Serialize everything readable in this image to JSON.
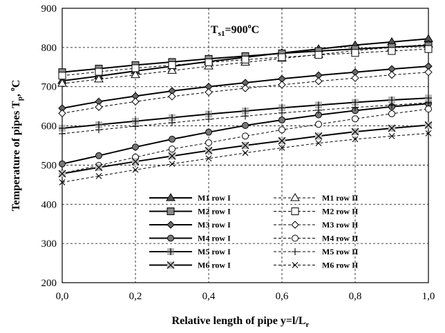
{
  "chart_data": {
    "type": "line",
    "title": "",
    "xlabel": "Relative length of pipe y=l/L",
    "xlabel_sub": "r",
    "ylabel": "Temperature of pipes T",
    "ylabel_sub": "p",
    "ylabel_suffix": ", ",
    "ylabel_unit": "o",
    "ylabel_unit_tail": "C",
    "annotation": {
      "main": "T",
      "sub": "s1",
      "value": "=900",
      "sup": "o",
      "tail": "C"
    },
    "xlim": [
      0,
      1
    ],
    "ylim": [
      200,
      900
    ],
    "grid": true,
    "legend_position": "lower-center",
    "x_ticks": [
      {
        "value": 0.0,
        "label": "0,0"
      },
      {
        "value": 0.2,
        "label": "0,2"
      },
      {
        "value": 0.4,
        "label": "0,4"
      },
      {
        "value": 0.6,
        "label": "0,6"
      },
      {
        "value": 0.8,
        "label": "0,8"
      },
      {
        "value": 1.0,
        "label": "1,0"
      }
    ],
    "y_ticks": [
      {
        "value": 200,
        "label": "200"
      },
      {
        "value": 300,
        "label": "300"
      },
      {
        "value": 400,
        "label": "400"
      },
      {
        "value": 500,
        "label": "500"
      },
      {
        "value": 600,
        "label": "600"
      },
      {
        "value": 700,
        "label": "700"
      },
      {
        "value": 800,
        "label": "800"
      },
      {
        "value": 900,
        "label": "900"
      }
    ],
    "x": [
      0.0,
      0.1,
      0.2,
      0.3,
      0.4,
      0.5,
      0.6,
      0.7,
      0.8,
      0.9,
      1.0
    ],
    "series": [
      {
        "name": "M1 row I",
        "marker": "triangle-filled",
        "dashed": false,
        "values": [
          715,
          727,
          740,
          752,
          764,
          775,
          786,
          796,
          806,
          814,
          822
        ]
      },
      {
        "name": "M1 row II",
        "marker": "triangle-open",
        "dashed": true,
        "values": [
          708,
          719,
          730,
          741,
          752,
          762,
          772,
          782,
          792,
          800,
          808
        ]
      },
      {
        "name": "M2 row I",
        "marker": "square-filled",
        "dashed": false,
        "values": [
          737,
          746,
          755,
          763,
          771,
          778,
          785,
          791,
          796,
          801,
          805
        ]
      },
      {
        "name": "M2 row II",
        "marker": "square-open",
        "dashed": true,
        "values": [
          728,
          738,
          747,
          755,
          762,
          769,
          775,
          781,
          786,
          791,
          796
        ]
      },
      {
        "name": "M3 row I",
        "marker": "diamond-filled",
        "dashed": false,
        "values": [
          645,
          662,
          676,
          689,
          700,
          710,
          720,
          729,
          737,
          745,
          752
        ]
      },
      {
        "name": "M3 row II",
        "marker": "diamond-open",
        "dashed": true,
        "values": [
          632,
          648,
          662,
          675,
          686,
          696,
          705,
          714,
          722,
          730,
          737
        ]
      },
      {
        "name": "M4 row I",
        "marker": "circle-filled",
        "dashed": false,
        "values": [
          503,
          524,
          546,
          566,
          584,
          601,
          615,
          628,
          639,
          649,
          657
        ]
      },
      {
        "name": "M4 row II",
        "marker": "circle-open",
        "dashed": true,
        "values": [
          479,
          499,
          520,
          541,
          557,
          574,
          590,
          604,
          618,
          631,
          643
        ]
      },
      {
        "name": "M5 row I",
        "marker": "plus-square",
        "dashed": false,
        "values": [
          594,
          603,
          612,
          621,
          630,
          638,
          646,
          653,
          660,
          666,
          671
        ]
      },
      {
        "name": "M5 row II",
        "marker": "plus",
        "dashed": true,
        "values": [
          580,
          590,
          599,
          608,
          617,
          625,
          633,
          640,
          647,
          653,
          659
        ]
      },
      {
        "name": "M6 row I",
        "marker": "x-square",
        "dashed": false,
        "values": [
          478,
          494,
          509,
          523,
          537,
          550,
          562,
          574,
          585,
          594,
          602
        ]
      },
      {
        "name": "M6 row II",
        "marker": "x",
        "dashed": true,
        "values": [
          456,
          472,
          488,
          503,
          517,
          531,
          544,
          556,
          566,
          574,
          581
        ]
      }
    ]
  }
}
